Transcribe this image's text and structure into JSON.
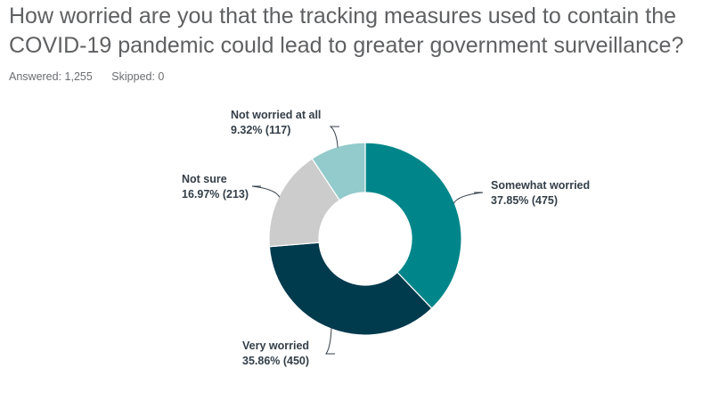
{
  "question": {
    "title": "How worried are you that the tracking measures used to contain the COVID-19 pandemic could lead to greater government surveillance?",
    "answered": "Answered: 1,255",
    "skipped": "Skipped: 0"
  },
  "chart_data": {
    "type": "pie",
    "donut": true,
    "legend": "none",
    "slices": [
      {
        "label": "Somewhat worried",
        "percent": 37.85,
        "count": 475,
        "value_text": "37.85% (475)",
        "color": "#00868a"
      },
      {
        "label": "Very worried",
        "percent": 35.86,
        "count": 450,
        "value_text": "35.86% (450)",
        "color": "#003a4d"
      },
      {
        "label": "Not sure",
        "percent": 16.97,
        "count": 213,
        "value_text": "16.97% (213)",
        "color": "#cccccc"
      },
      {
        "label": "Not worried at all",
        "percent": 9.32,
        "count": 117,
        "value_text": "9.32% (117)",
        "color": "#93cacb"
      }
    ]
  }
}
